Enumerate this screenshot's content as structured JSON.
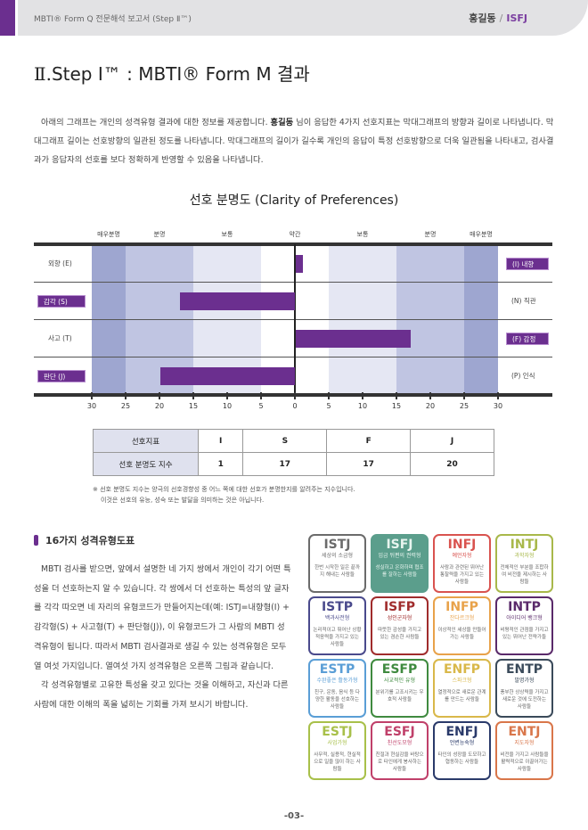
{
  "header": {
    "doc_title": "MBTI® Form Q 전문해석 보고서 (Step Ⅱ™)",
    "user_name": "홍길동",
    "separator": "/",
    "user_type": "ISFJ"
  },
  "section": {
    "roman": "Ⅱ.",
    "title": "Step Ⅰ™ : MBTI® Form M 결과"
  },
  "intro": {
    "part1": "아래의 그래프는 개인의 성격유형 결과에 대한 정보를 제공합니다. ",
    "name": "홍길동",
    "part2": " 님이 응답한 4가지 선호지표는 막대그래프의 방향과 길이로 나타냅니다. 막대그래프 길이는 선호방향의 일관된 정도를 나타냅니다. 막대그래프의 길이가 길수록 개인의 응답이 특정 선호방향으로 더욱 일관됨을 나타내고, 검사결과가 응답자의 선호를 보다 정확하게 반영할 수 있음을 나타냅니다."
  },
  "chart_data": {
    "type": "bar",
    "title": "선호 분명도 (Clarity of Preferences)",
    "orientation": "horizontal-diverging",
    "zone_labels": [
      "매우분명",
      "분명",
      "보통",
      "약간",
      "보통",
      "분명",
      "매우분명"
    ],
    "x_ticks": [
      "30",
      "25",
      "20",
      "15",
      "10",
      "5",
      "0",
      "5",
      "10",
      "15",
      "20",
      "25",
      "30"
    ],
    "xlim": [
      -30,
      30
    ],
    "rows": [
      {
        "left_label": "외향 (E)",
        "right_label": "(I) 내향",
        "value": 1,
        "direction": "right",
        "selected": "I"
      },
      {
        "left_label": "감각 (S)",
        "right_label": "(N) 직관",
        "value": 17,
        "direction": "left",
        "selected": "S"
      },
      {
        "left_label": "사고 (T)",
        "right_label": "(F) 감정",
        "value": 17,
        "direction": "right",
        "selected": "F"
      },
      {
        "left_label": "판단 (J)",
        "right_label": "(P) 인식",
        "value": 20,
        "direction": "left",
        "selected": "J"
      }
    ],
    "colors": {
      "bar": "#6b2f8f",
      "very_clear": "#9ea6d0",
      "clear": "#c0c5e2",
      "moderate": "#e5e7f3",
      "slight": "#ffffff"
    }
  },
  "pref_table": {
    "row1_header": "선호지표",
    "row2_header": "선호 분명도 지수",
    "letters": [
      "I",
      "S",
      "F",
      "J"
    ],
    "scores": [
      "1",
      "17",
      "17",
      "20"
    ]
  },
  "note": {
    "line1": "※ 선호 분명도 지수는 양극의 선호경향성 중 어느 쪽에 대한 선호가 분명한지를 알려주는 지수입니다.",
    "line2": "이것은 선호의 유능, 성숙 또는 발달을 의미하는 것은 아닙니다."
  },
  "types_section": {
    "title": "16가지 성격유형도표",
    "para1": "MBTI 검사를 받으면, 앞에서 설명한 네 가지 쌍에서 개인이 각기 어떤 특성을 더 선호하는지 알 수 있습니다. 각 쌍에서 더 선호하는 특성의 앞 글자를 각각 따오면 네 자리의 유형코드가 만들어지는데(예: ISTJ=내향형(I) + 감각형(S) + 사고형(T) + 판단형(J)), 이 유형코드가 그 사람의 MBTI 성격유형이 됩니다. 따라서 MBTI 검사결과로 생길 수 있는 성격유형은 모두 열 여섯 가지입니다. 열여섯 가지 성격유형은 오른쪽 그림과 같습니다.",
    "para2": "각 성격유형별로 고유한 특성을 갖고 있다는 것을 이해하고, 자신과 다른 사람에 대한 이해의 폭을 넓히는 기회를 가져 보시기 바랍니다."
  },
  "types": [
    {
      "code": "ISTJ",
      "nick": "세상의 소금형",
      "desc": "한번 시작한 일은 끝까지 해내는 사람들",
      "color": "#6b6b6b"
    },
    {
      "code": "ISFJ",
      "nick": "임금 뒤편의 권력형",
      "desc": "성실하고 온화하며 협조를 잘하는 사람들",
      "color": "#5b9e8c",
      "filled": true
    },
    {
      "code": "INFJ",
      "nick": "예언자형",
      "desc": "사람과 관련된 뛰어난 통찰력을 가지고 있는 사람들",
      "color": "#d9534f"
    },
    {
      "code": "INTJ",
      "nick": "과학자형",
      "desc": "전체적인 부분을 조합하여 비전을 제시하는 사람들",
      "color": "#a8b84a"
    },
    {
      "code": "ISTP",
      "nick": "백과사전형",
      "desc": "논리적이고 뛰어난 상황 적응력을 가지고 있는 사람들",
      "color": "#4a4a8c"
    },
    {
      "code": "ISFP",
      "nick": "성인군자형",
      "desc": "따뜻한 감성을 가지고 있는 겸손한 사람들",
      "color": "#a02c2c"
    },
    {
      "code": "INFP",
      "nick": "잔다르크형",
      "desc": "이상적인 세상을 만들어 가는 사람들",
      "color": "#e8a24a"
    },
    {
      "code": "INTP",
      "nick": "아이디어 뱅크형",
      "desc": "비평적인 관점을 가지고 있는 뛰어난 전략가들",
      "color": "#5a2a6a"
    },
    {
      "code": "ESTP",
      "nick": "수완좋은 활동가형",
      "desc": "친구, 운동, 음식 등 다양한 활동을 선호하는 사람들",
      "color": "#5a9ed6"
    },
    {
      "code": "ESFP",
      "nick": "사교적인 유형",
      "desc": "분위기를 고조시키는 우호적 사람들",
      "color": "#3f8a3f"
    },
    {
      "code": "ENFP",
      "nick": "스파크형",
      "desc": "열정적으로 새로운 관계를 만드는 사람들",
      "color": "#d9b84a"
    },
    {
      "code": "ENTP",
      "nick": "발명가형",
      "desc": "풍부한 상상력을 가지고 새로운 것에 도전하는 사람들",
      "color": "#3a4a5a"
    },
    {
      "code": "ESTJ",
      "nick": "사업가형",
      "desc": "사무적, 실용적, 현실적으로 일을 많이 하는 사람들",
      "color": "#a8c04a"
    },
    {
      "code": "ESFJ",
      "nick": "친선도모형",
      "desc": "친절과 현실감을 바탕으로 타인에게 봉사하는 사람들",
      "color": "#c0406a"
    },
    {
      "code": "ENFJ",
      "nick": "언변능숙형",
      "desc": "타인의 성장을 도모하고 협동하는 사람들",
      "color": "#2a3a6a"
    },
    {
      "code": "ENTJ",
      "nick": "지도자형",
      "desc": "비전을 가지고 사람들을 활력적으로 이끌어가는 사람들",
      "color": "#d9764a"
    }
  ],
  "page_number": "-03-"
}
